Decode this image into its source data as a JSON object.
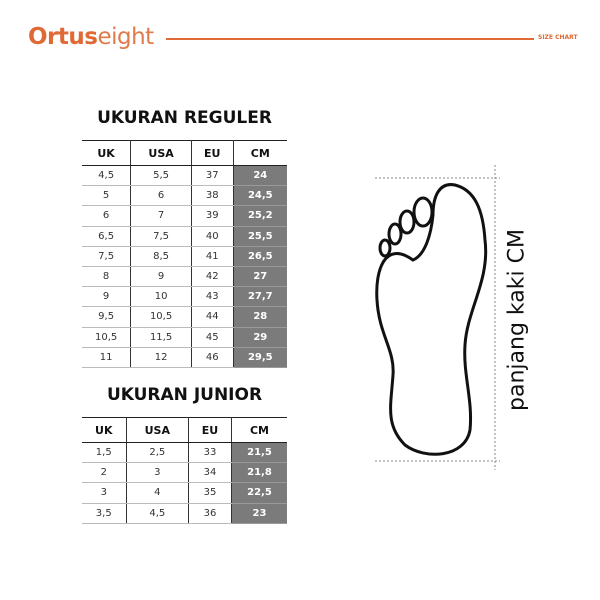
{
  "header": {
    "logo_bold": "Ortus",
    "logo_light": "eight",
    "tag": "SIZE CHART",
    "accent": "#e06a35"
  },
  "columns": [
    "UK",
    "USA",
    "EU",
    "CM"
  ],
  "regular": {
    "title": "UKURAN REGULER",
    "rows": [
      [
        "4,5",
        "5,5",
        "37",
        "24"
      ],
      [
        "5",
        "6",
        "38",
        "24,5"
      ],
      [
        "6",
        "7",
        "39",
        "25,2"
      ],
      [
        "6,5",
        "7,5",
        "40",
        "25,5"
      ],
      [
        "7,5",
        "8,5",
        "41",
        "26,5"
      ],
      [
        "8",
        "9",
        "42",
        "27"
      ],
      [
        "9",
        "10",
        "43",
        "27,7"
      ],
      [
        "9,5",
        "10,5",
        "44",
        "28"
      ],
      [
        "10,5",
        "11,5",
        "45",
        "29"
      ],
      [
        "11",
        "12",
        "46",
        "29,5"
      ]
    ]
  },
  "junior": {
    "title": "UKURAN JUNIOR",
    "rows": [
      [
        "1,5",
        "2,5",
        "33",
        "21,5"
      ],
      [
        "2",
        "3",
        "34",
        "21,8"
      ],
      [
        "3",
        "4",
        "35",
        "22,5"
      ],
      [
        "3,5",
        "4,5",
        "36",
        "23"
      ]
    ]
  },
  "foot": {
    "label": "panjang kaki CM",
    "icon": "foot-outline-icon"
  }
}
